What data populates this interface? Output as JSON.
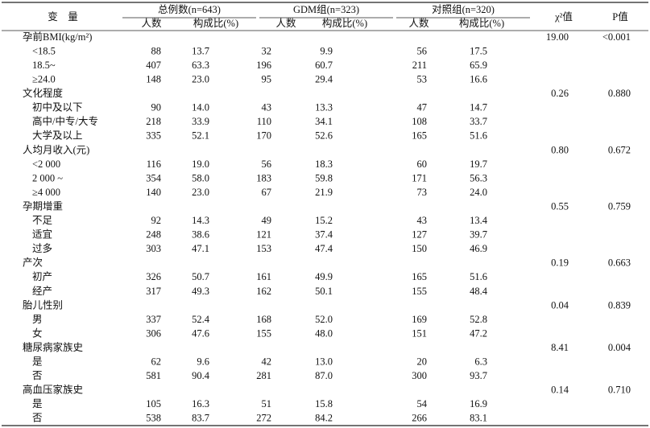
{
  "header": {
    "variable": "变　量",
    "groups": [
      {
        "title": "总例数(n=643)",
        "sub": [
          "人数",
          "构成比(%)"
        ]
      },
      {
        "title": "GDM组(n=323)",
        "sub": [
          "人数",
          "构成比(%)"
        ]
      },
      {
        "title": "对照组(n=320)",
        "sub": [
          "人数",
          "构成比(%)"
        ]
      }
    ],
    "chi2": "χ²值",
    "p": "P值"
  },
  "table": {
    "groups": [
      {
        "label": "孕前BMI(kg/m²)",
        "chi2": "19.00",
        "p": "<0.001",
        "rows": [
          {
            "label": "<18.5",
            "values": [
              "88",
              "13.7",
              "32",
              "9.9",
              "56",
              "17.5"
            ]
          },
          {
            "label": "18.5~",
            "values": [
              "407",
              "63.3",
              "196",
              "60.7",
              "211",
              "65.9"
            ]
          },
          {
            "label": "≥24.0",
            "values": [
              "148",
              "23.0",
              "95",
              "29.4",
              "53",
              "16.6"
            ]
          }
        ]
      },
      {
        "label": "文化程度",
        "chi2": "0.26",
        "p": "0.880",
        "rows": [
          {
            "label": "初中及以下",
            "values": [
              "90",
              "14.0",
              "43",
              "13.3",
              "47",
              "14.7"
            ]
          },
          {
            "label": "高中/中专/大专",
            "values": [
              "218",
              "33.9",
              "110",
              "34.1",
              "108",
              "33.7"
            ]
          },
          {
            "label": "大学及以上",
            "values": [
              "335",
              "52.1",
              "170",
              "52.6",
              "165",
              "51.6"
            ]
          }
        ]
      },
      {
        "label": "人均月收入(元)",
        "chi2": "0.80",
        "p": "0.672",
        "rows": [
          {
            "label": "<2 000",
            "values": [
              "116",
              "19.0",
              "56",
              "18.3",
              "60",
              "19.7"
            ]
          },
          {
            "label": "2 000 ~",
            "values": [
              "354",
              "58.0",
              "183",
              "59.8",
              "171",
              "56.3"
            ]
          },
          {
            "label": "≥4 000",
            "values": [
              "140",
              "23.0",
              "67",
              "21.9",
              "73",
              "24.0"
            ]
          }
        ]
      },
      {
        "label": "孕期增重",
        "chi2": "0.55",
        "p": "0.759",
        "rows": [
          {
            "label": "不足",
            "values": [
              "92",
              "14.3",
              "49",
              "15.2",
              "43",
              "13.4"
            ]
          },
          {
            "label": "适宜",
            "values": [
              "248",
              "38.6",
              "121",
              "37.4",
              "127",
              "39.7"
            ]
          },
          {
            "label": "过多",
            "values": [
              "303",
              "47.1",
              "153",
              "47.4",
              "150",
              "46.9"
            ]
          }
        ]
      },
      {
        "label": "产次",
        "chi2": "0.19",
        "p": "0.663",
        "rows": [
          {
            "label": "初产",
            "values": [
              "326",
              "50.7",
              "161",
              "49.9",
              "165",
              "51.6"
            ]
          },
          {
            "label": "经产",
            "values": [
              "317",
              "49.3",
              "162",
              "50.1",
              "155",
              "48.4"
            ]
          }
        ]
      },
      {
        "label": "胎儿性别",
        "chi2": "0.04",
        "p": "0.839",
        "rows": [
          {
            "label": "男",
            "values": [
              "337",
              "52.4",
              "168",
              "52.0",
              "169",
              "52.8"
            ]
          },
          {
            "label": "女",
            "values": [
              "306",
              "47.6",
              "155",
              "48.0",
              "151",
              "47.2"
            ]
          }
        ]
      },
      {
        "label": "糖尿病家族史",
        "chi2": "8.41",
        "p": "0.004",
        "rows": [
          {
            "label": "是",
            "values": [
              "62",
              "9.6",
              "42",
              "13.0",
              "20",
              "6.3"
            ]
          },
          {
            "label": "否",
            "values": [
              "581",
              "90.4",
              "281",
              "87.0",
              "300",
              "93.7"
            ]
          }
        ]
      },
      {
        "label": "高血压家族史",
        "chi2": "0.14",
        "p": "0.710",
        "rows": [
          {
            "label": "是",
            "values": [
              "105",
              "16.3",
              "51",
              "15.8",
              "54",
              "16.9"
            ]
          },
          {
            "label": "否",
            "values": [
              "538",
              "83.7",
              "272",
              "84.2",
              "266",
              "83.1"
            ]
          }
        ]
      }
    ]
  }
}
